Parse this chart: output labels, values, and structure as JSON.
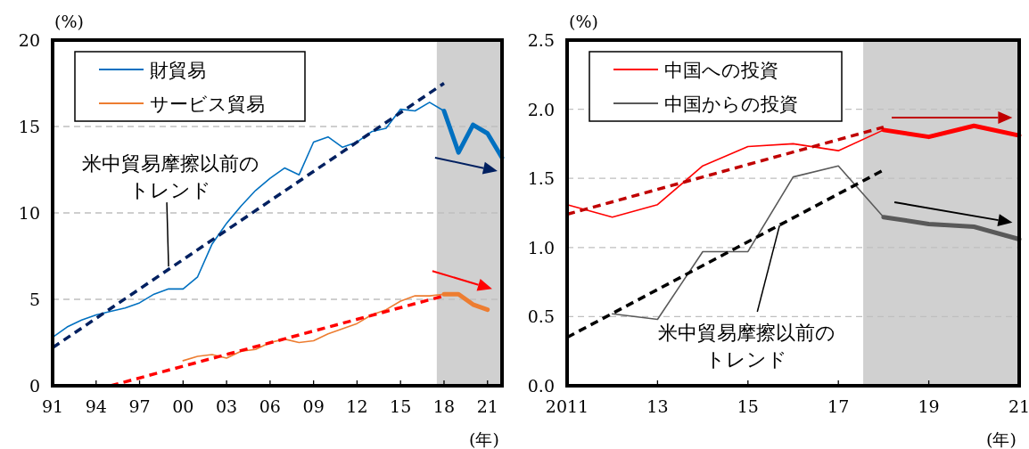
{
  "chart_data": [
    {
      "type": "line",
      "ylabel": "(%)",
      "xlabel": "(年)",
      "xlim": [
        1991,
        2022
      ],
      "ylim": [
        0,
        20
      ],
      "xticks": [
        {
          "value": 1991,
          "label": "91"
        },
        {
          "value": 1994,
          "label": "94"
        },
        {
          "value": 1997,
          "label": "97"
        },
        {
          "value": 2000,
          "label": "00"
        },
        {
          "value": 2003,
          "label": "03"
        },
        {
          "value": 2006,
          "label": "06"
        },
        {
          "value": 2009,
          "label": "09"
        },
        {
          "value": 2012,
          "label": "12"
        },
        {
          "value": 2015,
          "label": "15"
        },
        {
          "value": 2018,
          "label": "18"
        },
        {
          "value": 2021,
          "label": "21"
        }
      ],
      "yticks": [
        0,
        5,
        10,
        15,
        20
      ],
      "grid": "y",
      "legend": "top left",
      "bands": [
        {
          "axis": "x",
          "from": 2017.5,
          "to": 2022,
          "color": "#d0d0d0"
        }
      ],
      "annotations": [
        {
          "text": "米中貿易摩擦以前のトレンド",
          "x": 1999,
          "y": 6.9
        }
      ],
      "series": [
        {
          "name": "財貿易",
          "color": "#0070c0",
          "x": [
            1991,
            1992,
            1993,
            1994,
            1995,
            1996,
            1997,
            1998,
            1999,
            2000,
            2001,
            2002,
            2003,
            2004,
            2005,
            2006,
            2007,
            2008,
            2009,
            2010,
            2011,
            2012,
            2013,
            2014,
            2015,
            2016,
            2017,
            2018
          ],
          "values": [
            2.8,
            3.4,
            3.8,
            4.1,
            4.3,
            4.5,
            4.8,
            5.3,
            5.6,
            5.6,
            6.3,
            8.2,
            9.4,
            10.4,
            11.3,
            12.0,
            12.6,
            12.2,
            14.1,
            14.4,
            13.8,
            14.1,
            14.7,
            14.9,
            16.0,
            15.9,
            16.4,
            15.9
          ]
        },
        {
          "name": "サービス貿易",
          "color": "#ed7d31",
          "x": [
            2000,
            2001,
            2002,
            2003,
            2004,
            2005,
            2006,
            2007,
            2008,
            2009,
            2010,
            2011,
            2012,
            2013,
            2014,
            2015,
            2016,
            2017,
            2018
          ],
          "values": [
            1.45,
            1.7,
            1.8,
            1.6,
            2.0,
            2.1,
            2.5,
            2.7,
            2.5,
            2.6,
            3.0,
            3.3,
            3.6,
            4.1,
            4.4,
            4.9,
            5.2,
            5.2,
            5.3
          ]
        },
        {
          "color": "#0070c0",
          "x": [
            2018,
            2019,
            2020,
            2021,
            2022
          ],
          "values": [
            15.9,
            13.5,
            15.1,
            14.6,
            13.2
          ]
        },
        {
          "color": "#ed7d31",
          "x": [
            2018,
            2019,
            2020,
            2021
          ],
          "values": [
            5.3,
            5.3,
            4.7,
            4.4
          ]
        },
        {
          "color": "#002060",
          "line_style": "dashed",
          "x": [
            1991,
            2018
          ],
          "values": [
            2.2,
            17.5
          ]
        },
        {
          "color": "#ff0000",
          "line_style": "dashed",
          "x": [
            1995,
            2018
          ],
          "values": [
            0.0,
            5.2
          ]
        }
      ]
    },
    {
      "type": "line",
      "ylabel": "(%)",
      "xlabel": "(年)",
      "xlim": [
        2011,
        2021
      ],
      "ylim": [
        0,
        2.5
      ],
      "xticks": [
        {
          "value": 2011,
          "label": "2011"
        },
        {
          "value": 2013,
          "label": "13"
        },
        {
          "value": 2015,
          "label": "15"
        },
        {
          "value": 2017,
          "label": "17"
        },
        {
          "value": 2019,
          "label": "19"
        },
        {
          "value": 2021,
          "label": "21"
        }
      ],
      "yticks": [
        {
          "value": 0,
          "label": "0.0"
        },
        {
          "value": 0.5,
          "label": "0.5"
        },
        {
          "value": 1,
          "label": "1.0"
        },
        {
          "value": 1.5,
          "label": "1.5"
        },
        {
          "value": 2,
          "label": "2.0"
        },
        {
          "value": 2.5,
          "label": "2.5"
        }
      ],
      "grid": "y",
      "legend": "top left",
      "bands": [
        {
          "axis": "x",
          "from": 2017.55,
          "to": 2021,
          "color": "#d0d0d0"
        }
      ],
      "annotations": [
        {
          "text": "米中貿易摩擦以前のトレンド",
          "x": 2015.7,
          "y": 1.16
        }
      ],
      "series": [
        {
          "name": "中国への投資",
          "color": "#ff0000",
          "x": [
            2011,
            2012,
            2013,
            2014,
            2015,
            2016,
            2017,
            2018
          ],
          "values": [
            1.31,
            1.22,
            1.31,
            1.59,
            1.73,
            1.75,
            1.7,
            1.85
          ]
        },
        {
          "name": "中国からの投資",
          "color": "#595959",
          "x": [
            2012,
            2013,
            2014,
            2015,
            2016,
            2017,
            2018
          ],
          "values": [
            0.52,
            0.48,
            0.97,
            0.97,
            1.51,
            1.59,
            1.22
          ]
        },
        {
          "color": "#ff0000",
          "x": [
            2018,
            2019,
            2020,
            2021
          ],
          "values": [
            1.85,
            1.8,
            1.88,
            1.81
          ]
        },
        {
          "color": "#595959",
          "x": [
            2018,
            2019,
            2020,
            2021
          ],
          "values": [
            1.22,
            1.17,
            1.15,
            1.06
          ]
        },
        {
          "color": "#c00000",
          "line_style": "dashed",
          "x": [
            2011,
            2018
          ],
          "values": [
            1.24,
            1.87
          ]
        },
        {
          "color": "#000000",
          "line_style": "dashed",
          "x": [
            2011,
            2018
          ],
          "values": [
            0.35,
            1.56
          ]
        }
      ]
    }
  ]
}
